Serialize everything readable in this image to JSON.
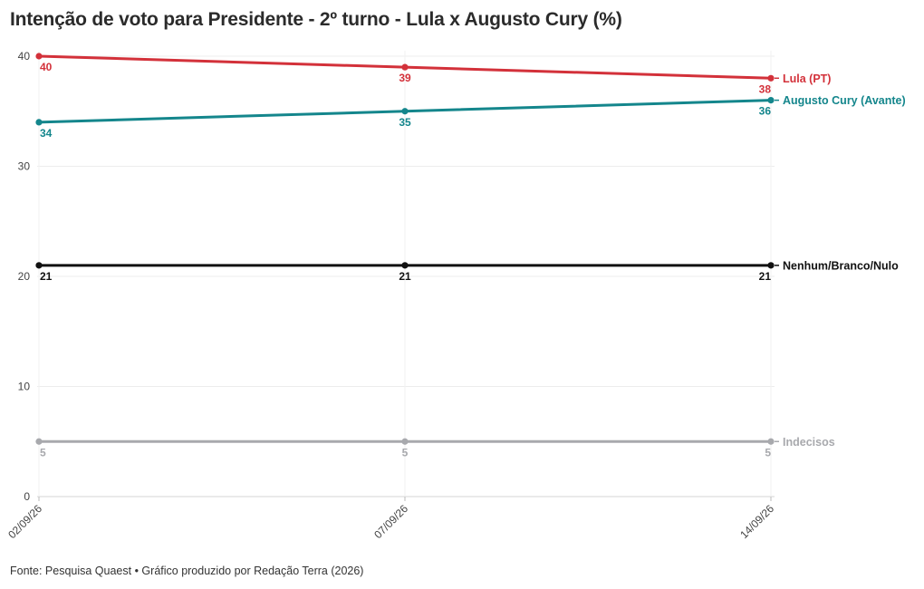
{
  "header": {
    "title": "Intenção de voto para Presidente - 2º turno - Lula x Augusto Cury (%)"
  },
  "footer": {
    "source": "Fonte: Pesquisa Quaest • Gráfico produzido por Redação Terra (2026)"
  },
  "chart_data": {
    "type": "line",
    "title": "Intenção de voto para Presidente - 2º turno - Lula x Augusto Cury (%)",
    "xlabel": "",
    "ylabel": "",
    "x": [
      "02/09/26",
      "07/09/26",
      "14/09/26"
    ],
    "ylim": [
      0,
      40
    ],
    "yticks": [
      0,
      10,
      20,
      30,
      40
    ],
    "grid": true,
    "legend": "direct labels at right end of lines",
    "series": [
      {
        "name": "Lula (PT)",
        "values": [
          40,
          39,
          38
        ],
        "color": "#d3313a",
        "label_position": "below"
      },
      {
        "name": "Augusto Cury (Avante)",
        "values": [
          34,
          35,
          36
        ],
        "color": "#14868c",
        "label_position": "below"
      },
      {
        "name": "Nenhum/Branco/Nulo",
        "values": [
          21,
          21,
          21
        ],
        "color": "#111111",
        "label_position": "below"
      },
      {
        "name": "Indecisos",
        "values": [
          5,
          5,
          5
        ],
        "color": "#a8a9ad",
        "label_position": "below"
      }
    ]
  }
}
